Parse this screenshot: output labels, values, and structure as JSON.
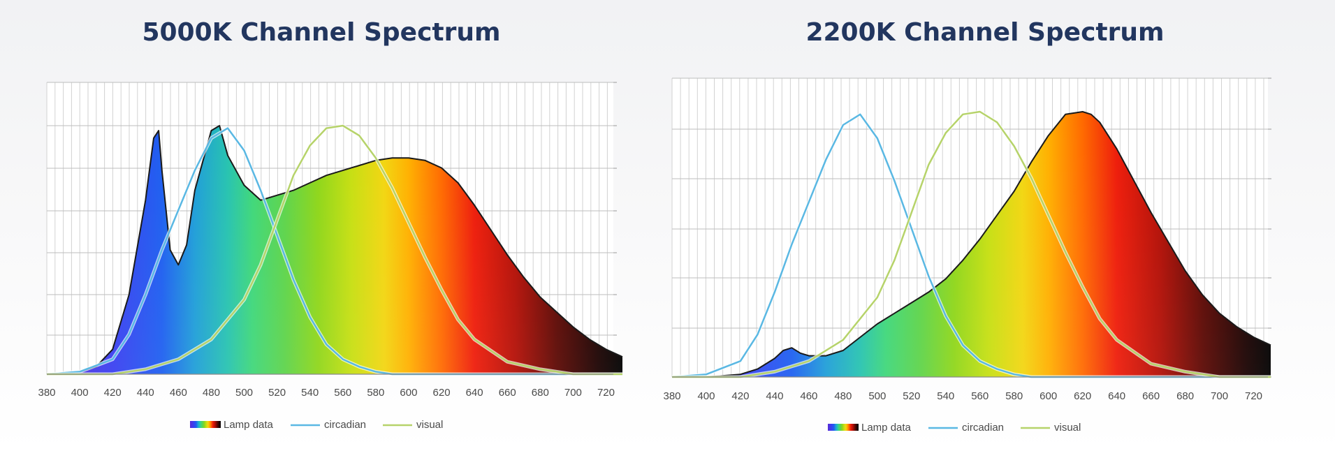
{
  "chart_data": [
    {
      "type": "area",
      "title": "5000K Channel Spectrum",
      "xlabel": "",
      "ylabel": "",
      "xlim": [
        380,
        730
      ],
      "ylim": [
        0,
        1.0
      ],
      "x_ticks": [
        380,
        400,
        420,
        440,
        460,
        480,
        500,
        520,
        540,
        560,
        580,
        600,
        620,
        640,
        660,
        680,
        700,
        720
      ],
      "grid": true,
      "legend_position": "bottom",
      "legend": [
        "Lamp data",
        "circadian",
        "visual"
      ],
      "series": [
        {
          "name": "Lamp data",
          "style": "spectral-fill",
          "x": [
            380,
            400,
            410,
            420,
            430,
            440,
            445,
            448,
            450,
            455,
            460,
            465,
            470,
            475,
            480,
            485,
            490,
            500,
            510,
            520,
            530,
            540,
            550,
            560,
            570,
            580,
            590,
            600,
            610,
            620,
            630,
            640,
            650,
            660,
            670,
            680,
            690,
            700,
            710,
            720,
            730
          ],
          "y": [
            0.0,
            0.01,
            0.03,
            0.1,
            0.32,
            0.7,
            0.95,
            0.98,
            0.82,
            0.5,
            0.44,
            0.52,
            0.74,
            0.86,
            0.98,
            1.0,
            0.88,
            0.76,
            0.7,
            0.72,
            0.74,
            0.77,
            0.8,
            0.82,
            0.84,
            0.86,
            0.87,
            0.87,
            0.86,
            0.83,
            0.77,
            0.68,
            0.58,
            0.48,
            0.39,
            0.31,
            0.25,
            0.19,
            0.14,
            0.1,
            0.07
          ]
        },
        {
          "name": "circadian",
          "color": "#5ab8e3",
          "x": [
            380,
            400,
            420,
            430,
            440,
            450,
            460,
            470,
            480,
            490,
            500,
            510,
            520,
            530,
            540,
            550,
            560,
            570,
            580,
            590,
            600,
            620,
            640,
            660,
            700,
            730
          ],
          "y": [
            0.0,
            0.01,
            0.06,
            0.16,
            0.32,
            0.5,
            0.66,
            0.82,
            0.95,
            0.99,
            0.9,
            0.74,
            0.56,
            0.38,
            0.23,
            0.12,
            0.06,
            0.03,
            0.01,
            0.0,
            0.0,
            0.0,
            0.0,
            0.0,
            0.0,
            0.0
          ]
        },
        {
          "name": "visual",
          "color": "#b6d36a",
          "x": [
            380,
            420,
            440,
            460,
            480,
            500,
            510,
            520,
            530,
            540,
            550,
            560,
            570,
            580,
            590,
            600,
            610,
            620,
            630,
            640,
            660,
            680,
            700,
            730
          ],
          "y": [
            0.0,
            0.0,
            0.02,
            0.06,
            0.14,
            0.3,
            0.44,
            0.62,
            0.8,
            0.92,
            0.99,
            1.0,
            0.96,
            0.87,
            0.75,
            0.61,
            0.47,
            0.34,
            0.22,
            0.14,
            0.05,
            0.02,
            0.0,
            0.0
          ]
        }
      ]
    },
    {
      "type": "area",
      "title": "2200K Channel Spectrum",
      "xlabel": "",
      "ylabel": "",
      "xlim": [
        380,
        730
      ],
      "ylim": [
        0,
        1.0
      ],
      "x_ticks": [
        380,
        400,
        420,
        440,
        460,
        480,
        500,
        520,
        540,
        560,
        580,
        600,
        620,
        640,
        660,
        680,
        700,
        720
      ],
      "grid": true,
      "legend_position": "bottom",
      "legend": [
        "Lamp data",
        "circadian",
        "visual"
      ],
      "series": [
        {
          "name": "Lamp data",
          "style": "spectral-fill",
          "x": [
            380,
            400,
            420,
            430,
            440,
            445,
            450,
            455,
            460,
            470,
            480,
            490,
            500,
            510,
            520,
            530,
            540,
            550,
            560,
            570,
            580,
            590,
            600,
            610,
            620,
            625,
            630,
            640,
            650,
            660,
            670,
            680,
            690,
            700,
            710,
            720,
            730
          ],
          "y": [
            0.0,
            0.0,
            0.01,
            0.03,
            0.07,
            0.1,
            0.11,
            0.09,
            0.08,
            0.08,
            0.1,
            0.15,
            0.2,
            0.24,
            0.28,
            0.32,
            0.37,
            0.44,
            0.52,
            0.61,
            0.7,
            0.81,
            0.91,
            0.99,
            1.0,
            0.99,
            0.96,
            0.86,
            0.74,
            0.62,
            0.51,
            0.4,
            0.31,
            0.24,
            0.19,
            0.15,
            0.12
          ]
        },
        {
          "name": "circadian",
          "color": "#5ab8e3",
          "x": [
            380,
            400,
            420,
            430,
            440,
            450,
            460,
            470,
            480,
            490,
            500,
            510,
            520,
            530,
            540,
            550,
            560,
            570,
            580,
            590,
            600,
            620,
            640,
            660,
            700,
            730
          ],
          "y": [
            0.0,
            0.01,
            0.06,
            0.16,
            0.32,
            0.5,
            0.66,
            0.82,
            0.95,
            0.99,
            0.9,
            0.74,
            0.56,
            0.38,
            0.23,
            0.12,
            0.06,
            0.03,
            0.01,
            0.0,
            0.0,
            0.0,
            0.0,
            0.0,
            0.0,
            0.0
          ]
        },
        {
          "name": "visual",
          "color": "#b6d36a",
          "x": [
            380,
            420,
            440,
            460,
            480,
            500,
            510,
            520,
            530,
            540,
            550,
            560,
            570,
            580,
            590,
            600,
            610,
            620,
            630,
            640,
            660,
            680,
            700,
            730
          ],
          "y": [
            0.0,
            0.0,
            0.02,
            0.06,
            0.14,
            0.3,
            0.44,
            0.62,
            0.8,
            0.92,
            0.99,
            1.0,
            0.96,
            0.87,
            0.75,
            0.61,
            0.47,
            0.34,
            0.22,
            0.14,
            0.05,
            0.02,
            0.0,
            0.0
          ]
        }
      ]
    }
  ]
}
